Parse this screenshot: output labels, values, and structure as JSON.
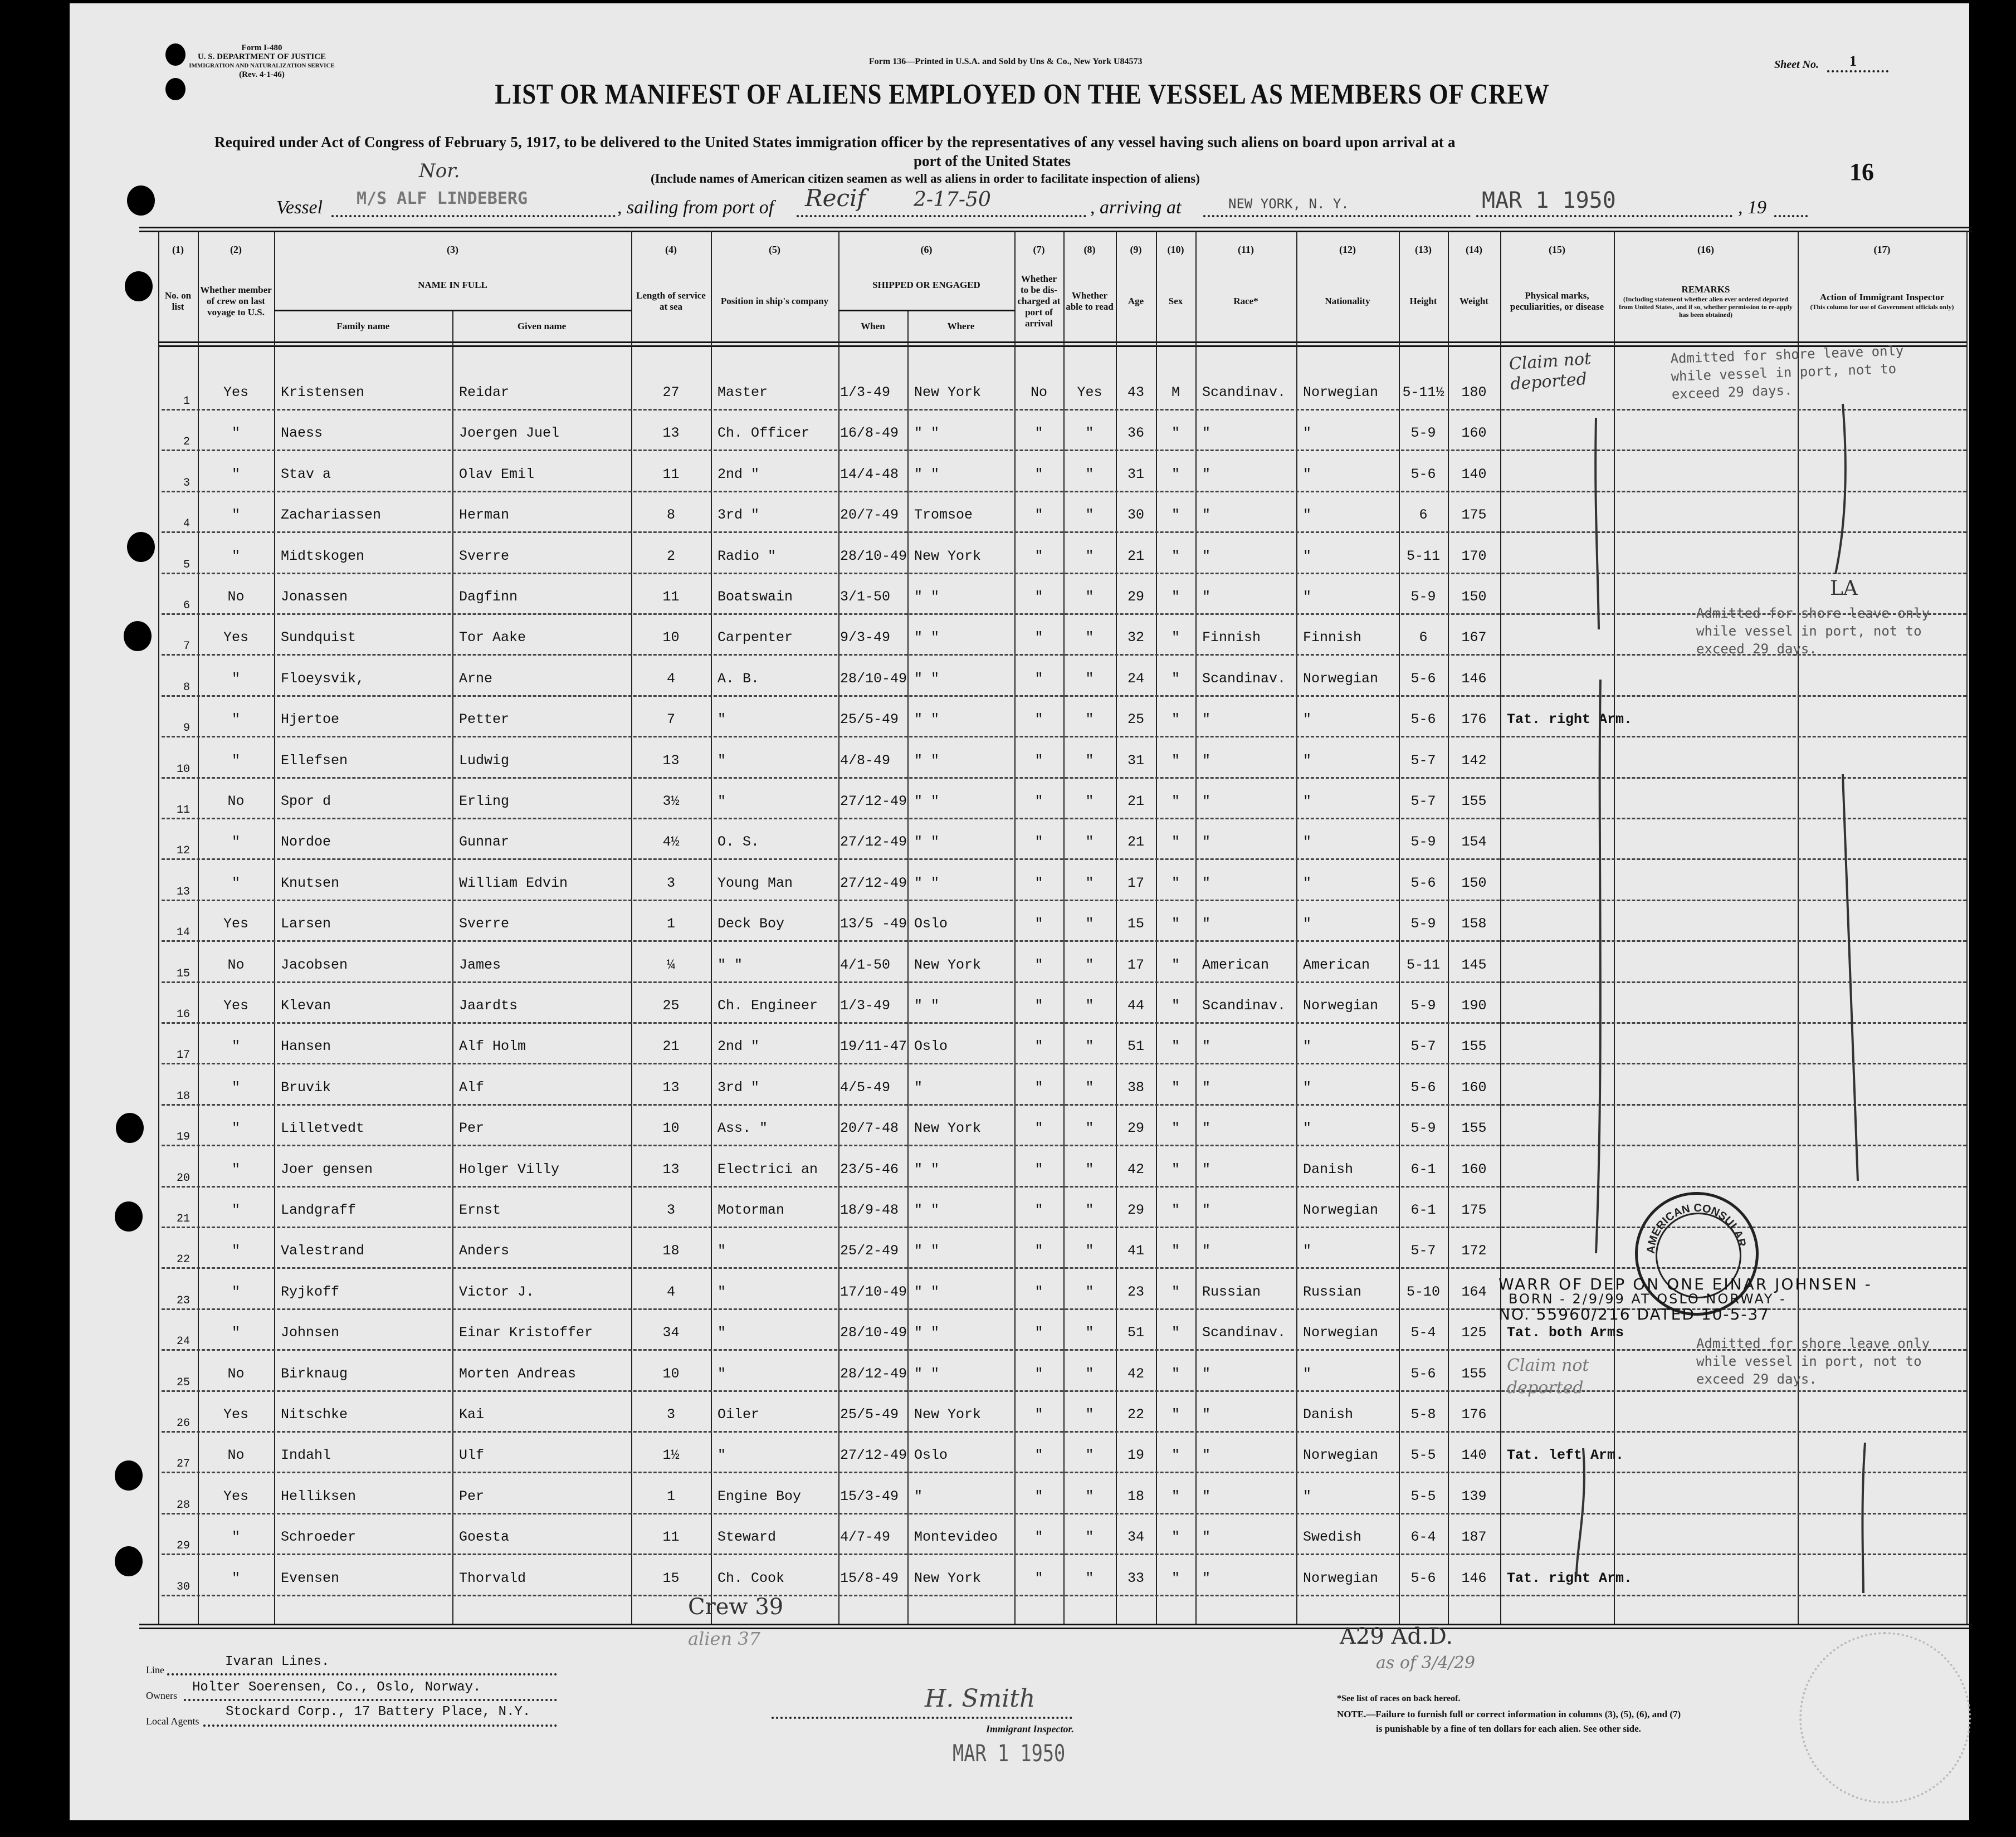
{
  "form_block": {
    "form_no": "Form I-480",
    "department": "U. S. DEPARTMENT OF JUSTICE",
    "service": "IMMIGRATION AND NATURALIZATION SERVICE",
    "revision": "(Rev. 4-1-46)"
  },
  "printer_line": "Form 136—Printed in U.S.A. and Sold by Uns & Co., New York U84573",
  "sheet": {
    "label": "Sheet No.",
    "value": "1"
  },
  "title": "LIST OR MANIFEST OF ALIENS EMPLOYED ON THE VESSEL AS MEMBERS OF CREW",
  "subtitle": "Required under Act of Congress of February 5, 1917, to be delivered to the United States immigration officer by the representatives of any vessel having such aliens on board upon arrival at a",
  "subtitle2": "port of the United States",
  "include_note": "(Include names of American citizen seamen as well as aliens in order to facilitate inspection of aliens)",
  "page_mark": "16",
  "vessel_line": {
    "nationality_hand": "Nor.",
    "vessel_label": "Vessel",
    "vessel_value": "M/S ALF LINDEBERG",
    "sailing_label": ", sailing from port of",
    "port_value": "Recif",
    "sail_date": "2-17-50",
    "arriving_label": ", arriving at",
    "arriving_value": "NEW YORK, N. Y.",
    "arrival_date": "MAR 1 1950",
    "year_label": ", 19"
  },
  "columns": [
    {
      "num": "(1)",
      "label": "No. on list"
    },
    {
      "num": "(2)",
      "label": "Whether member of crew on last voyage to U.S."
    },
    {
      "num": "(3)",
      "label": "NAME IN FULL",
      "sub": [
        "Family name",
        "Given name"
      ]
    },
    {
      "num": "(4)",
      "label": "Length of service at sea"
    },
    {
      "num": "(5)",
      "label": "Position in ship's company"
    },
    {
      "num": "(6)",
      "label": "SHIPPED OR ENGAGED",
      "sub": [
        "When",
        "Where"
      ]
    },
    {
      "num": "(7)",
      "label": "Whether to be dis-charged at port of arrival"
    },
    {
      "num": "(8)",
      "label": "Whether able to read"
    },
    {
      "num": "(9)",
      "label": "Age"
    },
    {
      "num": "(10)",
      "label": "Sex"
    },
    {
      "num": "(11)",
      "label": "Race*"
    },
    {
      "num": "(12)",
      "label": "Nationality"
    },
    {
      "num": "(13)",
      "label": "Height"
    },
    {
      "num": "(14)",
      "label": "Weight"
    },
    {
      "num": "(15)",
      "label": "Physical marks, peculiarities, or disease"
    },
    {
      "num": "(16)",
      "label": "REMARKS",
      "note": "(Including statement whether alien ever ordered deported from United States, and if so, whether permission to re-apply has been obtained)"
    },
    {
      "num": "(17)",
      "label": "Action of Immigrant Inspector",
      "note": "(This column for use of Government officials only)"
    }
  ],
  "rows": [
    [
      "1",
      "Yes",
      "Kristensen",
      "Reidar",
      "27",
      "Master",
      "1/3-49",
      "New York",
      "No",
      "Yes",
      "43",
      "M",
      "Scandinav.",
      "Norwegian",
      "5-11½",
      "180",
      ""
    ],
    [
      "2",
      "\"",
      "Naess",
      "Joergen Juel",
      "13",
      "Ch. Officer",
      "16/8-49",
      "\"   \"",
      "\"",
      "\"",
      "36",
      "\"",
      "\"",
      "\"",
      "5-9",
      "160",
      ""
    ],
    [
      "3",
      "\"",
      "Stav a",
      "Olav Emil",
      "11",
      "2nd   \"",
      "14/4-48",
      "\"   \"",
      "\"",
      "\"",
      "31",
      "\"",
      "\"",
      "\"",
      "5-6",
      "140",
      ""
    ],
    [
      "4",
      "\"",
      "Zachariassen",
      "Herman",
      "8",
      "3rd   \"",
      "20/7-49",
      "Tromsoe",
      "\"",
      "\"",
      "30",
      "\"",
      "\"",
      "\"",
      "6",
      "175",
      ""
    ],
    [
      "5",
      "\"",
      "Midtskogen",
      "Sverre",
      "2",
      "Radio \"",
      "28/10-49",
      "New York",
      "\"",
      "\"",
      "21",
      "\"",
      "\"",
      "\"",
      "5-11",
      "170",
      ""
    ],
    [
      "6",
      "No",
      "Jonassen",
      "Dagfinn",
      "11",
      "Boatswain",
      "3/1-50",
      "\"   \"",
      "\"",
      "\"",
      "29",
      "\"",
      "\"",
      "\"",
      "5-9",
      "150",
      ""
    ],
    [
      "7",
      "Yes",
      "Sundquist",
      "Tor Aake",
      "10",
      "Carpenter",
      "9/3-49",
      "\"   \"",
      "\"",
      "\"",
      "32",
      "\"",
      "Finnish",
      "Finnish",
      "6",
      "167",
      ""
    ],
    [
      "8",
      "\"",
      "Floeysvik,",
      "Arne",
      "4",
      "A. B.",
      "28/10-49",
      "\"   \"",
      "\"",
      "\"",
      "24",
      "\"",
      "Scandinav.",
      "Norwegian",
      "5-6",
      "146",
      ""
    ],
    [
      "9",
      "\"",
      "Hjertoe",
      "Petter",
      "7",
      "\"",
      "25/5-49",
      "\"   \"",
      "\"",
      "\"",
      "25",
      "\"",
      "\"",
      "\"",
      "5-6",
      "176",
      "Tat. right Arm."
    ],
    [
      "10",
      "\"",
      "Ellefsen",
      "Ludwig",
      "13",
      "\"",
      "4/8-49",
      "\"   \"",
      "\"",
      "\"",
      "31",
      "\"",
      "\"",
      "\"",
      "5-7",
      "142",
      ""
    ],
    [
      "11",
      "No",
      "Spor d",
      "Erling",
      "3½",
      "\"",
      "27/12-49",
      "\"   \"",
      "\"",
      "\"",
      "21",
      "\"",
      "\"",
      "\"",
      "5-7",
      "155",
      ""
    ],
    [
      "12",
      "\"",
      "Nordoe",
      "Gunnar",
      "4½",
      "O. S.",
      "27/12-49",
      "\"   \"",
      "\"",
      "\"",
      "21",
      "\"",
      "\"",
      "\"",
      "5-9",
      "154",
      ""
    ],
    [
      "13",
      "\"",
      "Knutsen",
      "William Edvin",
      "3",
      "Young Man",
      "27/12-49",
      "\"   \"",
      "\"",
      "\"",
      "17",
      "\"",
      "\"",
      "\"",
      "5-6",
      "150",
      ""
    ],
    [
      "14",
      "Yes",
      "Larsen",
      "Sverre",
      "1",
      "Deck Boy",
      "13/5 -49",
      "Oslo",
      "\"",
      "\"",
      "15",
      "\"",
      "\"",
      "\"",
      "5-9",
      "158",
      ""
    ],
    [
      "15",
      "No",
      "Jacobsen",
      "James",
      "¼",
      "\"   \"",
      "4/1-50",
      "New York",
      "\"",
      "\"",
      "17",
      "\"",
      "American",
      "American",
      "5-11",
      "145",
      ""
    ],
    [
      "16",
      "Yes",
      "Klevan",
      "Jaardts",
      "25",
      "Ch. Engineer",
      "1/3-49",
      "\"   \"",
      "\"",
      "\"",
      "44",
      "\"",
      "Scandinav.",
      "Norwegian",
      "5-9",
      "190",
      ""
    ],
    [
      "17",
      "\"",
      "Hansen",
      "Alf Holm",
      "21",
      "2nd   \"",
      "19/11-47",
      "Oslo",
      "\"",
      "\"",
      "51",
      "\"",
      "\"",
      "\"",
      "5-7",
      "155",
      ""
    ],
    [
      "18",
      "\"",
      "Bruvik",
      "Alf",
      "13",
      "3rd   \"",
      "4/5-49",
      "\"",
      "\"",
      "\"",
      "38",
      "\"",
      "\"",
      "\"",
      "5-6",
      "160",
      ""
    ],
    [
      "19",
      "\"",
      "Lilletvedt",
      "Per",
      "10",
      "Ass.  \"",
      "20/7-48",
      "New York",
      "\"",
      "\"",
      "29",
      "\"",
      "\"",
      "\"",
      "5-9",
      "155",
      ""
    ],
    [
      "20",
      "\"",
      "Joer gensen",
      "Holger Villy",
      "13",
      "Electrici an",
      "23/5-46",
      "\"   \"",
      "\"",
      "\"",
      "42",
      "\"",
      "\"",
      "Danish",
      "6-1",
      "160",
      ""
    ],
    [
      "21",
      "\"",
      "Landgraff",
      "Ernst",
      "3",
      "Motorman",
      "18/9-48",
      "\"   \"",
      "\"",
      "\"",
      "29",
      "\"",
      "\"",
      "Norwegian",
      "6-1",
      "175",
      ""
    ],
    [
      "22",
      "\"",
      "Valestrand",
      "Anders",
      "18",
      "\"",
      "25/2-49",
      "\"   \"",
      "\"",
      "\"",
      "41",
      "\"",
      "\"",
      "\"",
      "5-7",
      "172",
      ""
    ],
    [
      "23",
      "\"",
      "Ryjkoff",
      "Victor J.",
      "4",
      "\"",
      "17/10-49",
      "\"   \"",
      "\"",
      "\"",
      "23",
      "\"",
      "Russian",
      "Russian",
      "5-10",
      "164",
      ""
    ],
    [
      "24",
      "\"",
      "Johnsen",
      "Einar Kristoffer",
      "34",
      "\"",
      "28/10-49",
      "\"   \"",
      "\"",
      "\"",
      "51",
      "\"",
      "Scandinav.",
      "Norwegian",
      "5-4",
      "125",
      "Tat. both Arms"
    ],
    [
      "25",
      "No",
      "Birknaug",
      "Morten Andreas",
      "10",
      "\"",
      "28/12-49",
      "\"   \"",
      "\"",
      "\"",
      "42",
      "\"",
      "\"",
      "\"",
      "5-6",
      "155",
      ""
    ],
    [
      "26",
      "Yes",
      "Nitschke",
      "Kai",
      "3",
      "Oiler",
      "25/5-49",
      "New York",
      "\"",
      "\"",
      "22",
      "\"",
      "\"",
      "Danish",
      "5-8",
      "176",
      ""
    ],
    [
      "27",
      "No",
      "Indahl",
      "Ulf",
      "1½",
      "\"",
      "27/12-49",
      "Oslo",
      "\"",
      "\"",
      "19",
      "\"",
      "\"",
      "Norwegian",
      "5-5",
      "140",
      "Tat. left Arm."
    ],
    [
      "28",
      "Yes",
      "Helliksen",
      "Per",
      "1",
      "Engine Boy",
      "15/3-49",
      "\"",
      "\"",
      "\"",
      "18",
      "\"",
      "\"",
      "\"",
      "5-5",
      "139",
      ""
    ],
    [
      "29",
      "\"",
      "Schroeder",
      "Goesta",
      "11",
      "Steward",
      "4/7-49",
      "Montevideo",
      "\"",
      "\"",
      "34",
      "\"",
      "\"",
      "Swedish",
      "6-4",
      "187",
      ""
    ],
    [
      "30",
      "\"",
      "Evensen",
      "Thorvald",
      "15",
      "Ch. Cook",
      "15/8-49",
      "New York",
      "\"",
      "\"",
      "33",
      "\"",
      "\"",
      "Norwegian",
      "5-6",
      "146",
      "Tat. right Arm."
    ]
  ],
  "annotations": {
    "claim_1": "Claim not deported",
    "remark_1": "Admitted for shore leave only\nwhile vessel in port, not to\nexceed 29 days.",
    "action_la": "LA",
    "remark_7": "Admitted for shore leave only\nwhile vessel in port, not to\nexceed 29 days.",
    "warrant_1": "WARR OF DEP ON ONE EINAR JOHNSEN -",
    "warrant_2": "BORN - 2/9/99 AT OSLO NORWAY -",
    "warrant_3": "NO. 55960/216 DATED 10-5-37",
    "claim_24": "Claim not deported",
    "consular_stamp": "AMERICAN CONSULAR SERVICE",
    "remark_25": "Admitted for shore leave only\nwhile vessel in port, not to\nexceed 29 days."
  },
  "footer": {
    "crew_count": "Crew 39",
    "alien_count": "alien 37",
    "line_label": "Line",
    "line_value": "Ivaran Lines.",
    "owners_label": "Owners",
    "owners_value": "Holter Soerensen, Co., Oslo, Norway.",
    "agents_label": "Local Agents",
    "agents_value": "Stockard Corp., 17 Battery Place, N.Y.",
    "signature": "H. Smith",
    "inspector_label": "Immigrant Inspector.",
    "date_stamp": "MAR 1 1950",
    "hand_note_1": "A29 Ad.D.",
    "hand_note_2": "as of 3/4/29",
    "races_note": "*See list of races on back hereof.",
    "note_1": "NOTE.—Failure to furnish full or correct information in columns (3), (5), (6), and (7)",
    "note_2": "is punishable by a fine of ten dollars for each alien.  See other side."
  }
}
